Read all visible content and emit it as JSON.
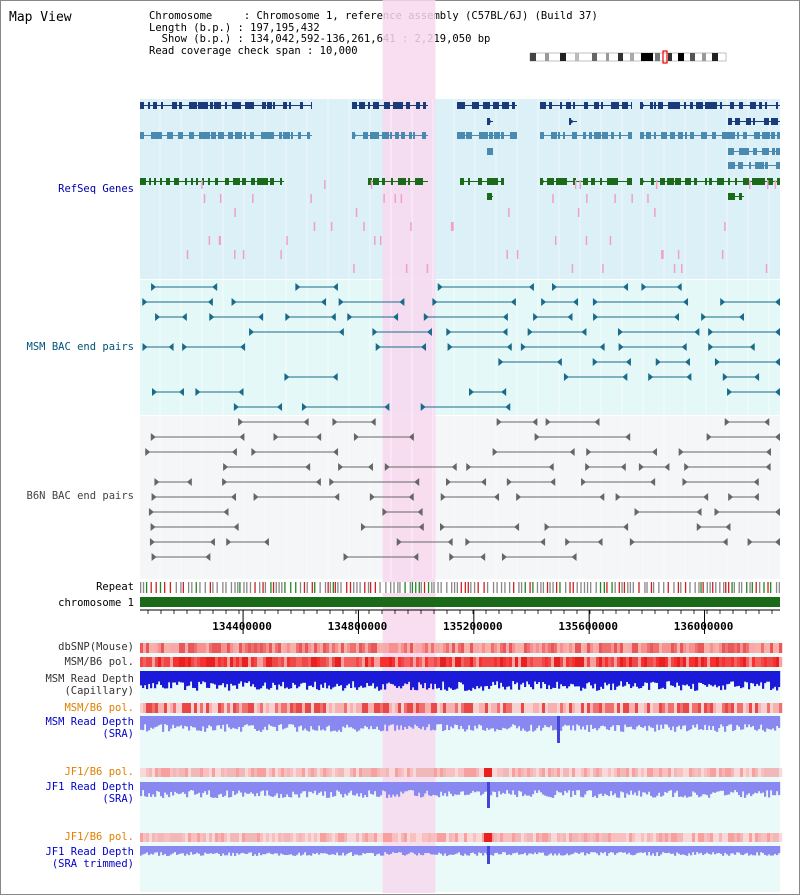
{
  "header": {
    "title": "Map View",
    "chromosome_line": "Chromosome     : Chromosome 1, reference assembly (C57BL/6J) (Build 37)",
    "length_line": "Length (b.p.) : 197,195,432",
    "show_line": "  Show (b.p.) : 134,042,592-136,261,641 : 2,219,050 bp",
    "coverage_line": "Read coverage check span : 10,000"
  },
  "tracks": {
    "refseq": "RefSeq Genes",
    "msm_bac": "MSM BAC end pairs",
    "b6n_bac": "B6N BAC end pairs",
    "repeat": "Repeat",
    "chromosome": "chromosome 1",
    "dbsnp": "dbSNP(Mouse)",
    "msm_b6_pol_1": "MSM/B6 pol.",
    "msm_depth_cap_1": "MSM Read Depth",
    "msm_depth_cap_2": "(Capillary)",
    "msm_b6_pol_2": "MSM/B6 pol.",
    "msm_depth_sra_1": "MSM Read Depth",
    "msm_depth_sra_2": "(SRA)",
    "jf1_b6_pol_1": "JF1/B6 pol.",
    "jf1_depth_sra_1": "JF1 Read Depth",
    "jf1_depth_sra_2": "(SRA)",
    "jf1_b6_pol_2": "JF1/B6 pol.",
    "jf1_depth_trim_1": "JF1 Read Depth",
    "jf1_depth_trim_2": "(SRA trimmed)"
  },
  "ruler": {
    "start_bp": 134042592,
    "end_bp": 136261641,
    "tick_labels": [
      "134400000",
      "134800000",
      "135200000",
      "135600000",
      "136000000"
    ]
  },
  "highlight": {
    "start_bp": 134884000,
    "end_bp": 135067000
  },
  "colors": {
    "refseq_bg": "#dcf0f8",
    "msm_bg": "#e4f8f8",
    "b6n_bg": "#f4f6f8",
    "highlight": "#f8d8f0",
    "gene_dark": "#1a3a7a",
    "gene_mid": "#4a8ab0",
    "gene_green": "#1a6a1a",
    "msm_line": "#1a6a8a",
    "b6n_line": "#666666",
    "chromosome_bar": "#1a6a1a",
    "depth_blue": "#1a1ad8",
    "depth_sra": "#8888f0"
  }
}
